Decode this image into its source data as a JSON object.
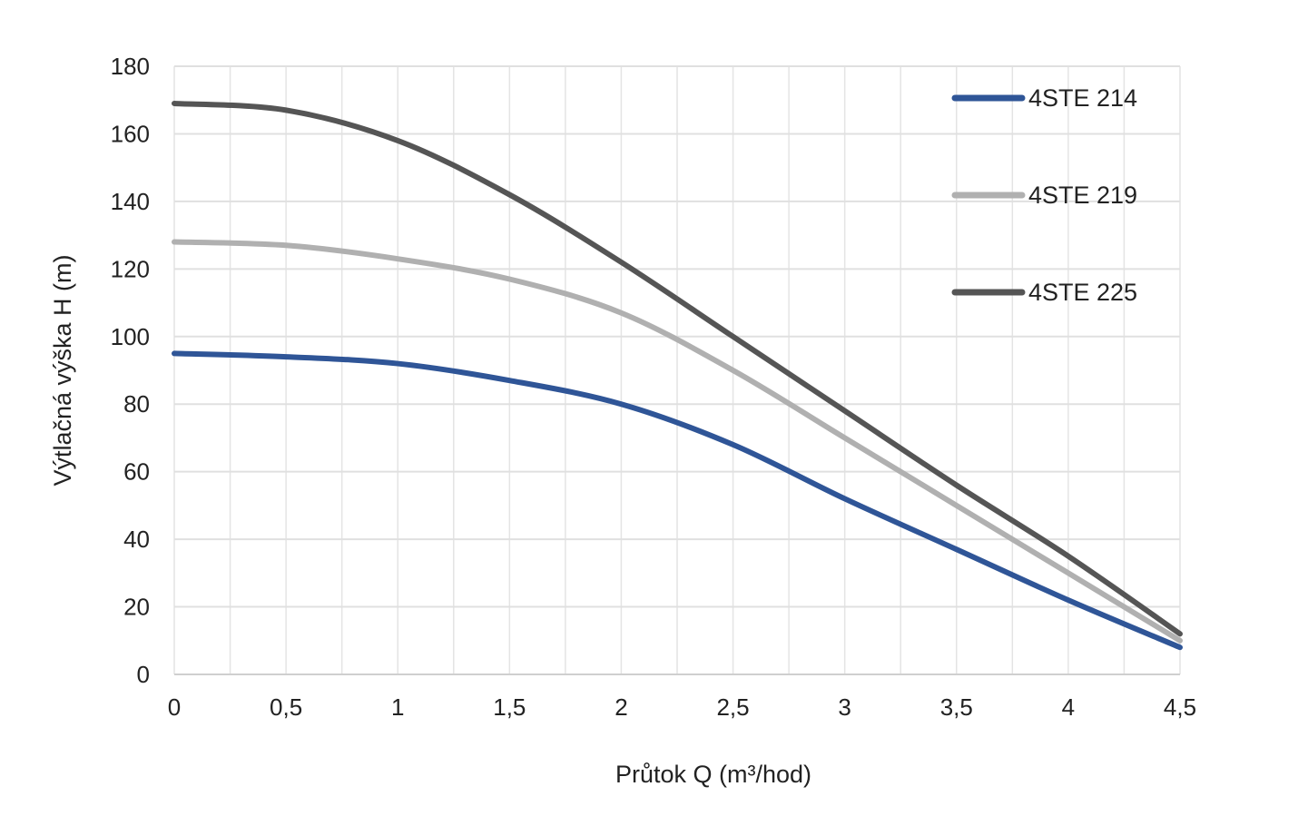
{
  "chart_data": {
    "type": "line",
    "title": "",
    "xlabel": "Průtok Q (m³/hod)",
    "ylabel": "Výtlačná výška H (m)",
    "xlim": [
      0,
      4.5
    ],
    "ylim": [
      0,
      180
    ],
    "x_ticks": [
      0,
      0.5,
      1,
      1.5,
      2,
      2.5,
      3,
      3.5,
      4,
      4.5
    ],
    "x_tick_labels": [
      "0",
      "0,5",
      "1",
      "1,5",
      "2",
      "2,5",
      "3",
      "3,5",
      "4",
      "4,5"
    ],
    "y_ticks": [
      0,
      20,
      40,
      60,
      80,
      100,
      120,
      140,
      160,
      180
    ],
    "y_tick_labels": [
      "0",
      "20",
      "40",
      "60",
      "80",
      "100",
      "120",
      "140",
      "160",
      "180"
    ],
    "grid": true,
    "legend_position": "top-right",
    "x": [
      0,
      0.5,
      1,
      1.5,
      2,
      2.5,
      3,
      3.5,
      4,
      4.5
    ],
    "series": [
      {
        "name": "4STE 214",
        "color": "#2f5597",
        "values": [
          95,
          94,
          92,
          87,
          80,
          68,
          52,
          37,
          22,
          8
        ]
      },
      {
        "name": "4STE 219",
        "color": "#b0b0b0",
        "values": [
          128,
          127,
          123,
          117,
          107,
          90,
          70,
          50,
          30,
          10
        ]
      },
      {
        "name": "4STE 225",
        "color": "#555555",
        "values": [
          169,
          167,
          158,
          142,
          122,
          100,
          78,
          56,
          35,
          12
        ]
      }
    ]
  }
}
